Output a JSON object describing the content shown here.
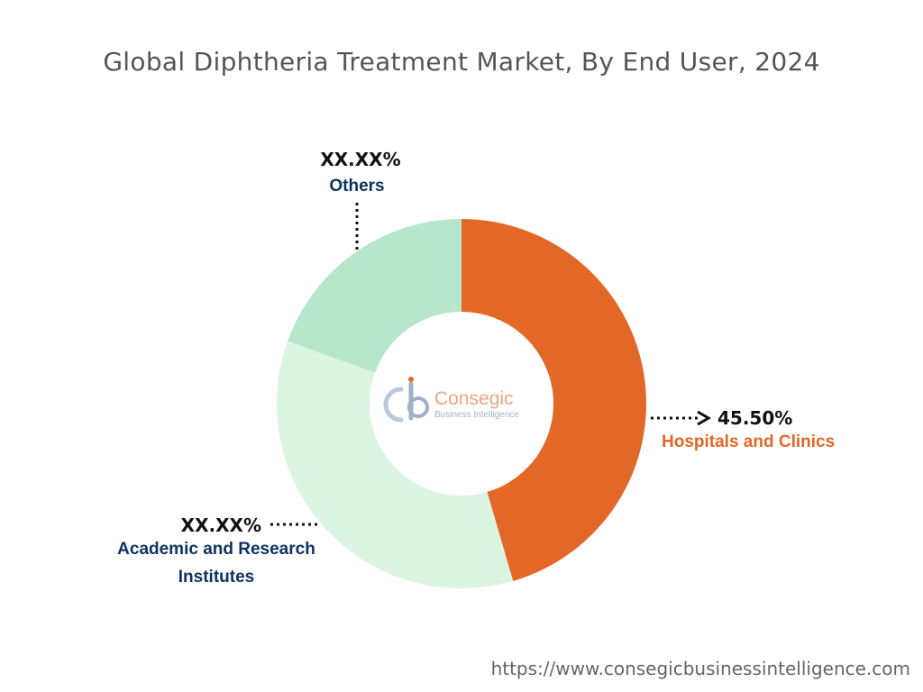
{
  "chart_data": {
    "type": "pie",
    "variant": "donut",
    "title": "Global Diphtheria Treatment Market, By End User, 2024",
    "categories": [
      "Hospitals and Clinics",
      "Academic and Research Institutes",
      "Others"
    ],
    "values": [
      45.5,
      35.0,
      19.5
    ],
    "value_labels": [
      "45.50%",
      "XX.XX%",
      "XX.XX%"
    ],
    "colors": [
      "#e36727",
      "#dcf5e2",
      "#b6e6cb"
    ],
    "label_colors": [
      "#e36727",
      "#0d3460",
      "#0d3460"
    ],
    "label_lines": [
      [
        "Hospitals and Clinics"
      ],
      [
        "Academic and Research",
        "Institutes"
      ],
      [
        "Others"
      ]
    ],
    "start_angle_deg": 0,
    "direction": "clockwise"
  },
  "watermark": {
    "brand": "Consegic",
    "tagline": "Business Intelligence"
  },
  "footer": {
    "url": "https://www.consegicbusinessintelligence.com"
  }
}
